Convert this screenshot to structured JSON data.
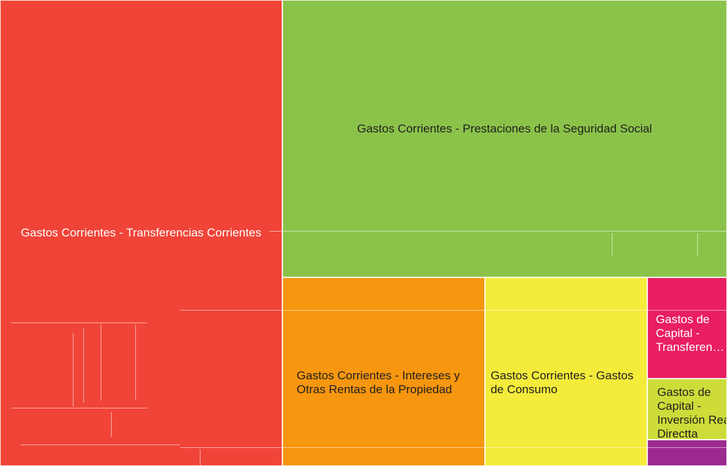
{
  "chart_data": {
    "type": "treemap",
    "title": "",
    "items": [
      {
        "id": "transferencias-corrientes",
        "label": "Gastos Corrientes - Transferencias Corrientes",
        "value": 1000,
        "color": "#f04438",
        "text": "light"
      },
      {
        "id": "seguridad-social",
        "label": "Gastos Corrientes - Prestaciones de la Seguridad Social",
        "value": 939,
        "color": "#8bc34a",
        "text": "dark"
      },
      {
        "id": "intereses",
        "label": "Gastos Corrientes - Intereses y Otras Rentas de la Propiedad",
        "value": 291,
        "color": "#f7960f",
        "text": "dark"
      },
      {
        "id": "gastos-consumo",
        "label": "Gastos Corrientes - Gastos de Consumo",
        "value": 233,
        "color": "#f5eb3b",
        "text": "dark"
      },
      {
        "id": "capital-transferencias",
        "label": "Gastos de Capital - Transferen…",
        "value": 61,
        "color": "#e91e63",
        "text": "light"
      },
      {
        "id": "capital-inversion",
        "label": "Gastos de Capital - Inversión Real Directta",
        "value": 37,
        "color": "#cddc39",
        "text": "dark"
      },
      {
        "id": "otros",
        "label": "",
        "value": 16,
        "color": "#9c2a8f",
        "text": "light"
      }
    ]
  }
}
